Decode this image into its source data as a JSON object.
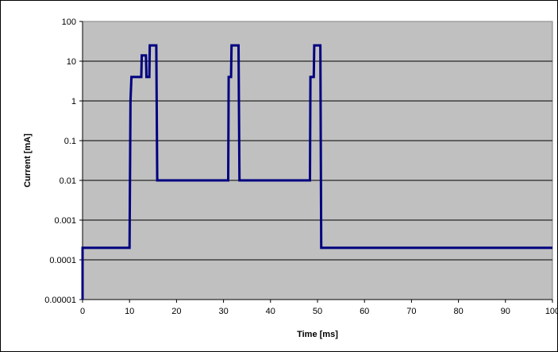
{
  "chart_data": {
    "type": "line",
    "title": "",
    "xlabel": "Time [ms]",
    "ylabel": "Current [mA]",
    "xlim": [
      0,
      100
    ],
    "ylim": [
      1e-05,
      100
    ],
    "y_scale": "log",
    "x_ticks": [
      "0",
      "10",
      "20",
      "30",
      "40",
      "50",
      "60",
      "70",
      "80",
      "90",
      "100"
    ],
    "y_ticks": [
      "0.00001",
      "0.0001",
      "0.001",
      "0.01",
      "0.1",
      "1",
      "10",
      "100"
    ],
    "grid": "horizontal",
    "legend": "none",
    "plot_background": "#c0c0c0",
    "line_color": "#000080",
    "series": [
      {
        "x": [
          0,
          0,
          10,
          10.2,
          10.4,
          12.5,
          12.6,
          13.5,
          13.6,
          14.2,
          14.3,
          15.7,
          15.9,
          31,
          31.1,
          31.6,
          31.7,
          33.2,
          33.4,
          48.4,
          48.5,
          49.2,
          49.3,
          50.6,
          50.8,
          100
        ],
        "y": [
          1e-05,
          0.0002,
          0.0002,
          1,
          4,
          4,
          14,
          14,
          4,
          4,
          25,
          25,
          0.01,
          0.01,
          4,
          4,
          25,
          25,
          0.01,
          0.01,
          4,
          4,
          25,
          25,
          0.0002,
          0.0002
        ]
      }
    ]
  }
}
